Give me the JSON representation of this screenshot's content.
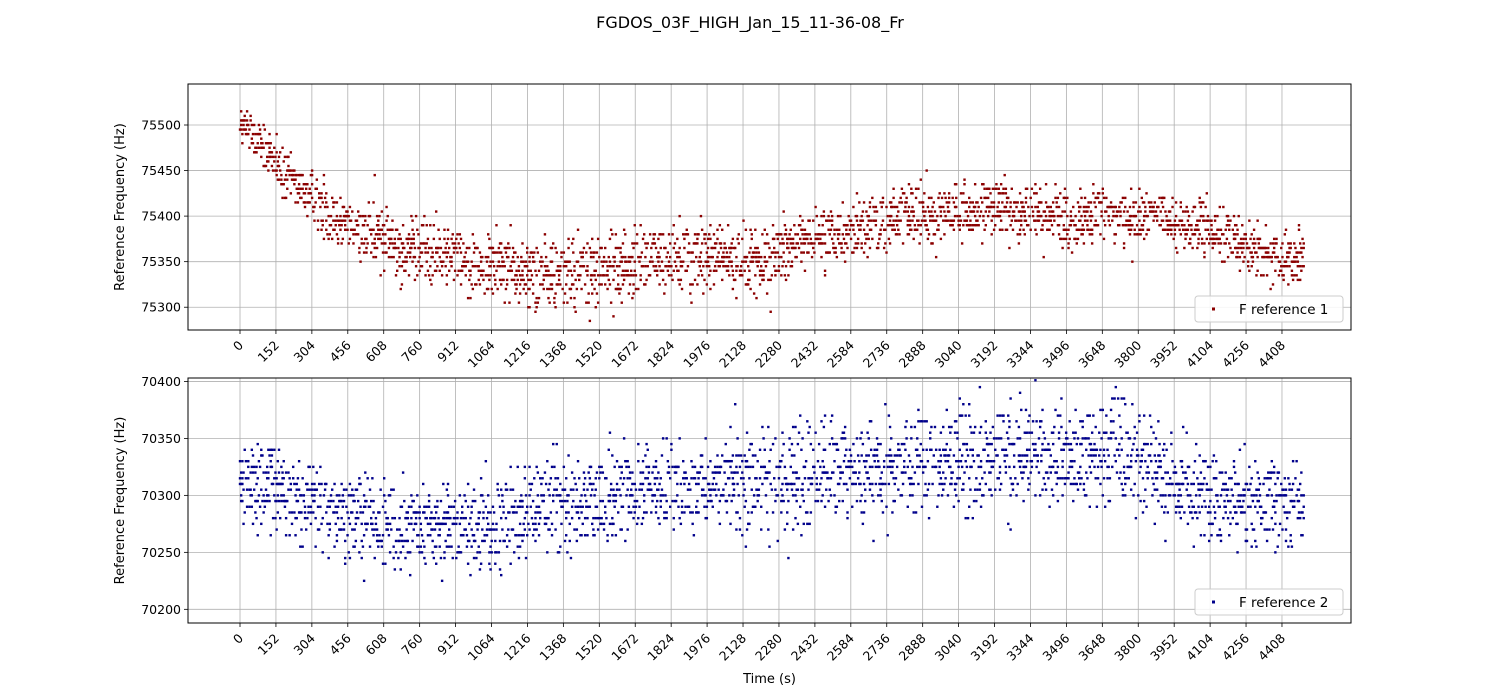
{
  "figure": {
    "title": "FGDOS_03F_HIGH_Jan_15_11-36-08_Fr"
  },
  "chart_data": [
    {
      "type": "scatter",
      "title": "",
      "xlabel": "",
      "ylabel": "Reference Frequency (Hz)",
      "xlim": [
        -220,
        4700
      ],
      "ylim": [
        75275,
        75545
      ],
      "xticks": [
        0,
        152,
        304,
        456,
        608,
        760,
        912,
        1064,
        1216,
        1368,
        1520,
        1672,
        1824,
        1976,
        2128,
        2280,
        2432,
        2584,
        2736,
        2888,
        3040,
        3192,
        3344,
        3496,
        3648,
        3800,
        3952,
        4104,
        4256,
        4408
      ],
      "xtick_labels": [
        "0",
        "152",
        "304",
        "456",
        "608",
        "760",
        "912",
        "1064",
        "1216",
        "1368",
        "1520",
        "1672",
        "1824",
        "1976",
        "2128",
        "2280",
        "2432",
        "2584",
        "2736",
        "2888",
        "3040",
        "3192",
        "3344",
        "3496",
        "3648",
        "3800",
        "3952",
        "4104",
        "4256",
        "4408"
      ],
      "yticks": [
        75300,
        75350,
        75400,
        75450,
        75500
      ],
      "ytick_labels": [
        "75300",
        "75350",
        "75400",
        "75450",
        "75500"
      ],
      "grid": true,
      "legend_position": "lower-right",
      "series": [
        {
          "name": "F reference 1",
          "color": "#8b0000",
          "trend": {
            "x": [
              0,
              50,
              100,
              150,
              200,
              300,
              400,
              500,
              600,
              700,
              800,
              900,
              1000,
              1100,
              1200,
              1300,
              1400,
              1500,
              1600,
              1700,
              1800,
              1900,
              2000,
              2100,
              2200,
              2300,
              2400,
              2500,
              2600,
              2700,
              2800,
              2900,
              3000,
              3100,
              3200,
              3300,
              3400,
              3500,
              3600,
              3700,
              3800,
              3900,
              4000,
              4100,
              4200,
              4300,
              4400,
              4500
            ],
            "y": [
              75500,
              75490,
              75475,
              75460,
              75440,
              75420,
              75400,
              75385,
              75375,
              75368,
              75360,
              75355,
              75350,
              75345,
              75340,
              75338,
              75336,
              75340,
              75345,
              75350,
              75352,
              75355,
              75355,
              75352,
              75350,
              75365,
              75375,
              75380,
              75385,
              75390,
              75400,
              75402,
              75400,
              75405,
              75408,
              75405,
              75400,
              75398,
              75400,
              75402,
              75398,
              75395,
              75390,
              75385,
              75375,
              75360,
              75355,
              75360
            ]
          },
          "spread": {
            "x": [
              0,
              300,
              600,
              1200,
              2200,
              2400,
              3500,
              4100,
              4500
            ],
            "y": [
              22,
              32,
              38,
              40,
              40,
              30,
              32,
              30,
              28
            ]
          },
          "quantization_hz": 5
        }
      ]
    },
    {
      "type": "scatter",
      "title": "",
      "xlabel": "Time (s)",
      "ylabel": "Reference Frequency (Hz)",
      "xlim": [
        -220,
        4700
      ],
      "ylim": [
        70188,
        70403
      ],
      "xticks": [
        0,
        152,
        304,
        456,
        608,
        760,
        912,
        1064,
        1216,
        1368,
        1520,
        1672,
        1824,
        1976,
        2128,
        2280,
        2432,
        2584,
        2736,
        2888,
        3040,
        3192,
        3344,
        3496,
        3648,
        3800,
        3952,
        4104,
        4256,
        4408
      ],
      "xtick_labels": [
        "0",
        "152",
        "304",
        "456",
        "608",
        "760",
        "912",
        "1064",
        "1216",
        "1368",
        "1520",
        "1672",
        "1824",
        "1976",
        "2128",
        "2280",
        "2432",
        "2584",
        "2736",
        "2888",
        "3040",
        "3192",
        "3344",
        "3496",
        "3648",
        "3800",
        "3952",
        "4104",
        "4256",
        "4408"
      ],
      "yticks": [
        70200,
        70250,
        70300,
        70350,
        70400
      ],
      "ytick_labels": [
        "70200",
        "70250",
        "70300",
        "70350",
        "70400"
      ],
      "grid": true,
      "legend_position": "lower-right",
      "series": [
        {
          "name": "F reference 2",
          "color": "#00008b",
          "trend": {
            "x": [
              0,
              150,
              300,
              450,
              600,
              750,
              900,
              1050,
              1200,
              1350,
              1500,
              1650,
              1800,
              1950,
              2100,
              2250,
              2400,
              2550,
              2700,
              2850,
              3000,
              3150,
              3300,
              3450,
              3600,
              3750,
              3900,
              4050,
              4200,
              4350,
              4500
            ],
            "y": [
              70310,
              70305,
              70290,
              70280,
              70275,
              70272,
              70270,
              70272,
              70285,
              70295,
              70298,
              70300,
              70305,
              70310,
              70312,
              70310,
              70315,
              70318,
              70322,
              70325,
              70325,
              70330,
              70330,
              70335,
              70340,
              70340,
              70320,
              70300,
              70295,
              70295,
              70295
            ]
          },
          "spread": {
            "x": [
              0,
              1000,
              2000,
              3000,
              3600,
              4500
            ],
            "y": [
              38,
              42,
              42,
              44,
              46,
              40
            ]
          },
          "quantization_hz": 5
        }
      ]
    }
  ]
}
